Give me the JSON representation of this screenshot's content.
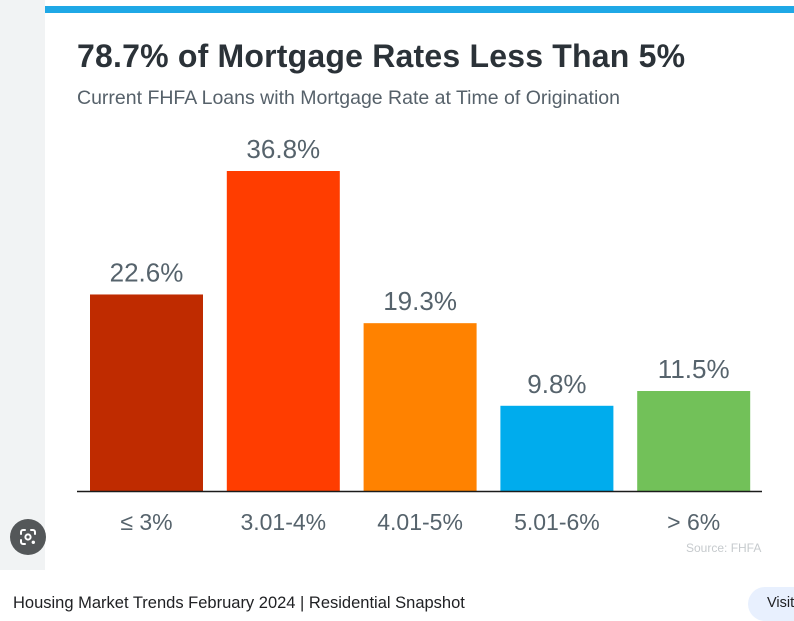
{
  "chart_data": {
    "type": "bar",
    "title": "78.7% of Mortgage Rates Less Than 5%",
    "subtitle": "Current FHFA Loans with Mortgage Rate at Time of Origination",
    "categories": [
      "≤ 3%",
      "3.01-4%",
      "4.01-5%",
      "5.01-6%",
      "> 6%"
    ],
    "values": [
      22.6,
      36.8,
      19.3,
      9.8,
      11.5
    ],
    "value_labels": [
      "22.6%",
      "36.8%",
      "19.3%",
      "9.8%",
      "11.5%"
    ],
    "colors": [
      "#bf2b00",
      "#ff3d00",
      "#ff8200",
      "#00aced",
      "#72c159"
    ],
    "xlabel": "",
    "ylabel": "",
    "ylim": [
      0,
      36.8
    ],
    "grid": false,
    "legend": "none",
    "source": "Source: FHFA"
  },
  "page": {
    "accent_color": "#1fa8e6",
    "caption": "Housing Market Trends February 2024 | Residential Snapshot",
    "visit_label": "Visit",
    "lens_icon": "google-lens-icon"
  }
}
